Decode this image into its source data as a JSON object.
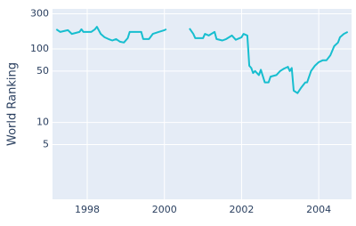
{
  "chart_data": {
    "type": "line",
    "y_label": "World Ranking",
    "log_y": true,
    "grid": true,
    "background": "#e5ecf6",
    "grid_color": "#ffffff",
    "xlim": [
      1997.1,
      2004.85
    ],
    "xticks": [
      1998,
      2000,
      2002,
      2004
    ],
    "ylim": [
      0.9,
      350
    ],
    "yticks": [
      300,
      100,
      50,
      10,
      5
    ],
    "x": [
      1997.2,
      1997.3,
      1997.5,
      1997.6,
      1997.8,
      1997.85,
      1997.9,
      1998.1,
      1998.2,
      1998.25,
      1998.35,
      1998.45,
      1998.55,
      1998.65,
      1998.75,
      1998.85,
      1998.95,
      1999.05,
      1999.1,
      1999.3,
      1999.4,
      1999.45,
      1999.6,
      1999.7,
      1999.85,
      2000.0,
      2000.05,
      2000.3,
      2000.65,
      2000.75,
      2000.8,
      2001.0,
      2001.05,
      2001.15,
      2001.3,
      2001.35,
      2001.5,
      2001.6,
      2001.75,
      2001.85,
      2002.0,
      2002.05,
      2002.15,
      2002.2,
      2002.25,
      2002.3,
      2002.35,
      2002.45,
      2002.5,
      2002.6,
      2002.7,
      2002.75,
      2002.9,
      2003.0,
      2003.1,
      2003.2,
      2003.25,
      2003.3,
      2003.35,
      2003.45,
      2003.55,
      2003.65,
      2003.7,
      2003.8,
      2003.9,
      2004.0,
      2004.1,
      2004.2,
      2004.3,
      2004.4,
      2004.5,
      2004.55,
      2004.65,
      2004.75
    ],
    "series": [
      {
        "color": "#17becf",
        "values": [
          185,
          170,
          180,
          160,
          170,
          185,
          170,
          170,
          185,
          200,
          160,
          144,
          136,
          130,
          136,
          125,
          122,
          140,
          170,
          170,
          170,
          136,
          136,
          160,
          170,
          180,
          185,
          null,
          190,
          160,
          140,
          140,
          160,
          152,
          170,
          136,
          130,
          136,
          152,
          133,
          144,
          160,
          152,
          59,
          55,
          47,
          50,
          44,
          52,
          35,
          35,
          42,
          44,
          50,
          54,
          57,
          50,
          55,
          27,
          25,
          30,
          35,
          35,
          50,
          59,
          66,
          70,
          70,
          82,
          109,
          122,
          144,
          160,
          170
        ]
      }
    ]
  }
}
